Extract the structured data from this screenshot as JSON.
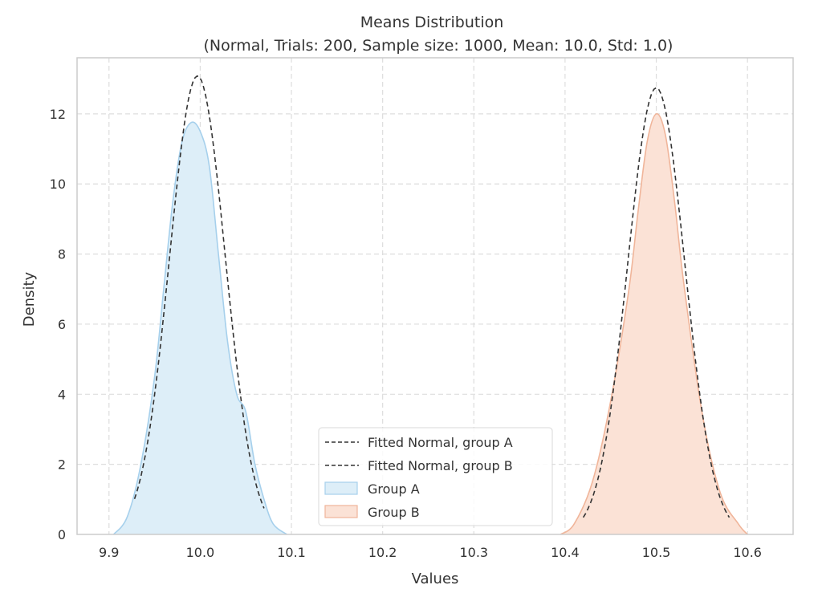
{
  "chart_data": {
    "type": "area",
    "title": "Means Distribution",
    "subtitle": "(Normal, Trials: 200, Sample size: 1000, Mean: 10.0, Std: 1.0)",
    "xlabel": "Values",
    "ylabel": "Density",
    "xlim": [
      9.865,
      10.65
    ],
    "ylim": [
      0,
      13.6
    ],
    "xticks": [
      9.9,
      10.0,
      10.1,
      10.2,
      10.3,
      10.4,
      10.5,
      10.6
    ],
    "xtick_labels": [
      "9.9",
      "10.0",
      "10.1",
      "10.2",
      "10.3",
      "10.4",
      "10.5",
      "10.6"
    ],
    "yticks": [
      0,
      2,
      4,
      6,
      8,
      10,
      12
    ],
    "ytick_labels": [
      "0",
      "2",
      "4",
      "6",
      "8",
      "10",
      "12"
    ],
    "grid": true,
    "legend_position": "lower-center",
    "legend": [
      "Fitted Normal, group A",
      "Fitted Normal, group B",
      "Group A",
      "Group B"
    ],
    "series": [
      {
        "name": "Group A",
        "kind": "kde-area",
        "color": "#a6d0ec",
        "fill": "#ddeef8",
        "x": [
          9.905,
          9.92,
          9.935,
          9.95,
          9.96,
          9.97,
          9.98,
          9.99,
          10.0,
          10.01,
          10.02,
          10.03,
          10.04,
          10.05,
          10.06,
          10.07,
          10.08,
          10.095
        ],
        "y": [
          0.0,
          0.5,
          2.0,
          4.5,
          7.0,
          9.5,
          11.2,
          11.75,
          11.5,
          10.5,
          8.0,
          5.5,
          4.0,
          3.5,
          2.0,
          1.0,
          0.3,
          0.0
        ]
      },
      {
        "name": "Group B",
        "kind": "kde-area",
        "color": "#f0b59a",
        "fill": "#fbe2d6",
        "x": [
          10.395,
          10.41,
          10.43,
          10.45,
          10.47,
          10.48,
          10.49,
          10.5,
          10.51,
          10.52,
          10.53,
          10.55,
          10.57,
          10.59,
          10.6
        ],
        "y": [
          0.0,
          0.3,
          1.5,
          3.8,
          7.0,
          9.2,
          11.2,
          12.0,
          11.4,
          9.5,
          7.2,
          3.5,
          1.2,
          0.3,
          0.0
        ]
      },
      {
        "name": "Fitted Normal, group A",
        "kind": "normal-fit",
        "mean": 9.997,
        "std": 0.0305,
        "x_range": [
          9.928,
          10.07
        ],
        "color": "#333333"
      },
      {
        "name": "Fitted Normal, group B",
        "kind": "normal-fit",
        "mean": 10.5,
        "std": 0.0313,
        "x_range": [
          10.42,
          10.58
        ],
        "color": "#333333"
      }
    ]
  }
}
